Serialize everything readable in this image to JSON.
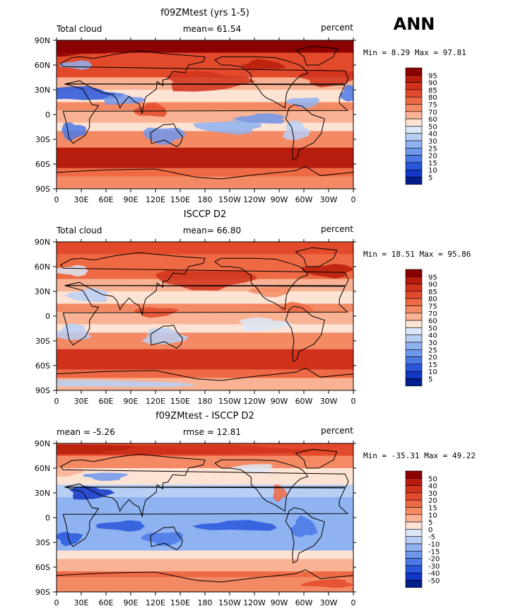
{
  "season": "ANN",
  "chart_data": [
    {
      "type": "heatmap",
      "title": "f09ZMtest (yrs 1-5)",
      "left_label": "Total cloud",
      "center_label": "mean=  61.54",
      "right_label": "percent",
      "minmax": "Min =   8.29 Max =  97.81",
      "mean": 61.54,
      "min": 8.29,
      "max": 97.81,
      "x_ticks": [
        "0",
        "30E",
        "60E",
        "90E",
        "120E",
        "150E",
        "180",
        "150W",
        "120W",
        "90W",
        "60W",
        "30W",
        "0"
      ],
      "y_ticks": [
        "90N",
        "60N",
        "30N",
        "0",
        "30S",
        "60S",
        "90S"
      ],
      "colorbar_levels": [
        "95",
        "90",
        "85",
        "80",
        "75",
        "70",
        "60",
        "50",
        "40",
        "30",
        "25",
        "20",
        "15",
        "10",
        "5"
      ],
      "colorbar_colors": [
        "#8b0000",
        "#b71c0c",
        "#d1321c",
        "#e34a2c",
        "#ee6a45",
        "#f48a64",
        "#f9b394",
        "#fde3d4",
        "#dbe7f7",
        "#b8cff5",
        "#8fb2f0",
        "#6f97ec",
        "#4a79e6",
        "#2856dc",
        "#1236c6",
        "#001f8c"
      ]
    },
    {
      "type": "heatmap",
      "title": "ISCCP D2",
      "left_label": "Total cloud",
      "center_label": "mean=  66.80",
      "right_label": "percent",
      "minmax": "Min =  18.51 Max =  95.86",
      "mean": 66.8,
      "min": 18.51,
      "max": 95.86,
      "x_ticks": [
        "0",
        "30E",
        "60E",
        "90E",
        "120E",
        "150E",
        "180",
        "150W",
        "120W",
        "90W",
        "60W",
        "30W",
        "0"
      ],
      "y_ticks": [
        "90N",
        "60N",
        "30N",
        "0",
        "30S",
        "60S",
        "90S"
      ],
      "colorbar_levels": [
        "95",
        "90",
        "85",
        "80",
        "75",
        "70",
        "60",
        "50",
        "40",
        "30",
        "25",
        "20",
        "15",
        "10",
        "5"
      ],
      "colorbar_colors": [
        "#8b0000",
        "#b71c0c",
        "#d1321c",
        "#e34a2c",
        "#ee6a45",
        "#f48a64",
        "#f9b394",
        "#fde3d4",
        "#dbe7f7",
        "#b8cff5",
        "#8fb2f0",
        "#6f97ec",
        "#4a79e6",
        "#2856dc",
        "#1236c6",
        "#001f8c"
      ]
    },
    {
      "type": "heatmap",
      "title": "f09ZMtest - ISCCP D2",
      "left_label": "mean =  -5.26",
      "center_label": "rmse =  12.81",
      "right_label": "percent",
      "minmax": "Min = -35.31 Max =  49.22",
      "mean": -5.26,
      "rmse": 12.81,
      "min": -35.31,
      "max": 49.22,
      "x_ticks": [
        "0",
        "30E",
        "60E",
        "90E",
        "120E",
        "150E",
        "180",
        "150W",
        "120W",
        "90W",
        "60W",
        "30W",
        "0"
      ],
      "y_ticks": [
        "90N",
        "60N",
        "30N",
        "0",
        "30S",
        "60S",
        "90S"
      ],
      "colorbar_levels": [
        "50",
        "40",
        "30",
        "20",
        "15",
        "10",
        "5",
        "0",
        "-5",
        "-10",
        "-15",
        "-20",
        "-30",
        "-40",
        "-50"
      ],
      "colorbar_colors": [
        "#8b0000",
        "#b71c0c",
        "#d1321c",
        "#e34a2c",
        "#ee6a45",
        "#f48a64",
        "#f9b394",
        "#fde3d4",
        "#dbe7f7",
        "#b8cff5",
        "#8fb2f0",
        "#6f97ec",
        "#4a79e6",
        "#2856dc",
        "#1236c6",
        "#001f8c"
      ]
    }
  ]
}
